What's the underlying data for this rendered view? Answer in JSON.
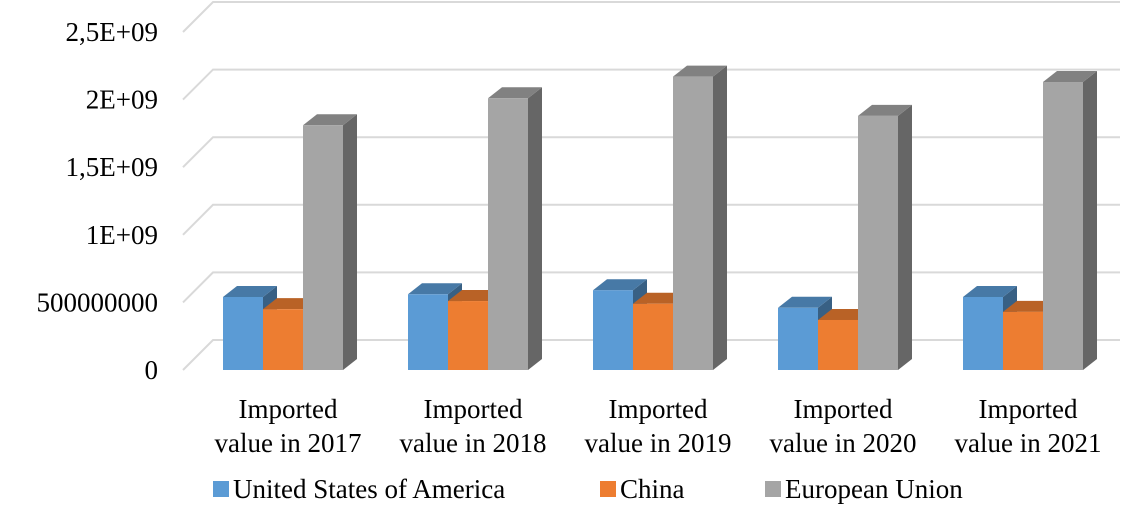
{
  "chart_data": {
    "type": "bar",
    "subtype": "3d-clustered-column",
    "title": "",
    "xlabel": "",
    "ylabel": "",
    "ylim": [
      0,
      2500000000
    ],
    "y_ticks": [
      {
        "value": 0,
        "label": "0"
      },
      {
        "value": 500000000,
        "label": "500000000"
      },
      {
        "value": 1000000000,
        "label": "1E+09"
      },
      {
        "value": 1500000000,
        "label": "1,5E+09"
      },
      {
        "value": 2000000000,
        "label": "2E+09"
      },
      {
        "value": 2500000000,
        "label": "2,5E+09"
      }
    ],
    "categories": [
      [
        "Imported",
        "value in 2017"
      ],
      [
        "Imported",
        "value in 2018"
      ],
      [
        "Imported",
        "value in 2019"
      ],
      [
        "Imported",
        "value in 2020"
      ],
      [
        "Imported",
        "value in 2021"
      ]
    ],
    "series": [
      {
        "name": "United States of America",
        "color": "#5b9bd5",
        "values": [
          540000000,
          560000000,
          590000000,
          460000000,
          540000000
        ]
      },
      {
        "name": "China",
        "color": "#ed7d31",
        "values": [
          450000000,
          510000000,
          490000000,
          370000000,
          430000000
        ]
      },
      {
        "name": "European Union",
        "color": "#a5a5a5",
        "values": [
          1810000000,
          2010000000,
          2170000000,
          1880000000,
          2130000000
        ]
      }
    ],
    "grid": true,
    "legend_position": "bottom"
  }
}
